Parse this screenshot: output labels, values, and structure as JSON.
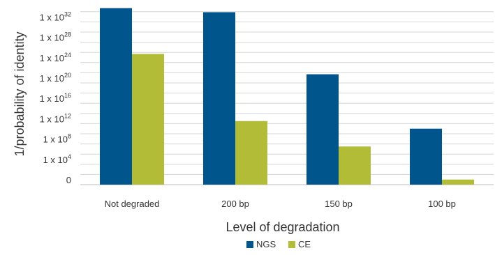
{
  "chart_data": {
    "type": "bar",
    "xlabel": "Level of degradation",
    "ylabel": "1/probability of identity",
    "y_scale": "log10",
    "ylim_log10": [
      0,
      35
    ],
    "y_ticks": [
      {
        "value_log10": 0,
        "base": "0",
        "exp": ""
      },
      {
        "value_log10": 4,
        "base": "1 x 10",
        "exp": "4"
      },
      {
        "value_log10": 8,
        "base": "1 x 10",
        "exp": "8"
      },
      {
        "value_log10": 12,
        "base": "1 x 10",
        "exp": "12"
      },
      {
        "value_log10": 16,
        "base": "1 x 10",
        "exp": "16"
      },
      {
        "value_log10": 20,
        "base": "1 x 10",
        "exp": "20"
      },
      {
        "value_log10": 24,
        "base": "1 x 10",
        "exp": "24"
      },
      {
        "value_log10": 28,
        "base": "1 x 10",
        "exp": "28"
      },
      {
        "value_log10": 32,
        "base": "1 x 10",
        "exp": "32"
      }
    ],
    "categories": [
      "Not degraded",
      "200 bp",
      "150 bp",
      "100 bp"
    ],
    "series": [
      {
        "name": "NGS",
        "color": "#00558c",
        "values_log10": [
          34.7,
          33.9,
          21.7,
          11
        ]
      },
      {
        "name": "CE",
        "color": "#b2bc36",
        "values_log10": [
          25.7,
          12.5,
          7.5,
          1
        ]
      }
    ],
    "grid": true,
    "legend_position": "bottom"
  }
}
